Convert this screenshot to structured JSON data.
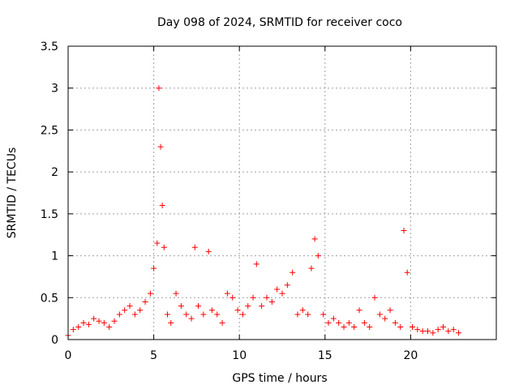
{
  "chart_data": {
    "type": "scatter",
    "title": "Day 098 of 2024, SRMTID for receiver coco",
    "xlabel": "GPS time / hours",
    "ylabel": "SRMTID / TECUs",
    "xlim": [
      0,
      25
    ],
    "ylim": [
      0,
      3.5
    ],
    "x_ticks": [
      0,
      5,
      10,
      15,
      20
    ],
    "y_ticks": [
      0,
      0.5,
      1,
      1.5,
      2,
      2.5,
      3,
      3.5
    ],
    "x_tick_labels": [
      "0",
      "5",
      "10",
      "15",
      "20"
    ],
    "y_tick_labels": [
      "0",
      "0.5",
      "1",
      "1.5",
      "2",
      "2.5",
      "3",
      "3.5"
    ],
    "grid": true,
    "marker": "+",
    "series": [
      {
        "name": "SRMTID",
        "color": "#ff0000",
        "x": [
          0.0,
          0.3,
          0.6,
          0.9,
          1.2,
          1.5,
          1.8,
          2.1,
          2.4,
          2.7,
          3.0,
          3.3,
          3.6,
          3.9,
          4.2,
          4.5,
          4.8,
          5.0,
          5.2,
          5.3,
          5.4,
          5.5,
          5.6,
          5.8,
          6.0,
          6.3,
          6.6,
          6.9,
          7.2,
          7.4,
          7.6,
          7.9,
          8.2,
          8.4,
          8.7,
          9.0,
          9.3,
          9.6,
          9.9,
          10.2,
          10.5,
          10.8,
          11.0,
          11.3,
          11.6,
          11.9,
          12.2,
          12.5,
          12.8,
          13.1,
          13.4,
          13.7,
          14.0,
          14.2,
          14.4,
          14.6,
          14.9,
          15.2,
          15.5,
          15.8,
          16.1,
          16.4,
          16.7,
          17.0,
          17.3,
          17.6,
          17.9,
          18.2,
          18.5,
          18.8,
          19.1,
          19.4,
          19.6,
          19.8,
          20.1,
          20.4,
          20.7,
          21.0,
          21.3,
          21.6,
          21.9,
          22.2,
          22.5,
          22.8
        ],
        "y": [
          0.05,
          0.12,
          0.15,
          0.2,
          0.18,
          0.25,
          0.22,
          0.2,
          0.15,
          0.22,
          0.3,
          0.35,
          0.4,
          0.3,
          0.35,
          0.45,
          0.55,
          0.85,
          1.15,
          3.0,
          2.3,
          1.6,
          1.1,
          0.3,
          0.2,
          0.55,
          0.4,
          0.3,
          0.25,
          1.1,
          0.4,
          0.3,
          1.05,
          0.35,
          0.3,
          0.2,
          0.55,
          0.5,
          0.35,
          0.3,
          0.4,
          0.5,
          0.9,
          0.4,
          0.5,
          0.45,
          0.6,
          0.55,
          0.65,
          0.8,
          0.3,
          0.35,
          0.3,
          0.85,
          1.2,
          1.0,
          0.3,
          0.2,
          0.25,
          0.2,
          0.15,
          0.2,
          0.15,
          0.35,
          0.2,
          0.15,
          0.5,
          0.3,
          0.25,
          0.35,
          0.2,
          0.15,
          1.3,
          0.8,
          0.15,
          0.12,
          0.1,
          0.1,
          0.08,
          0.12,
          0.15,
          0.1,
          0.12,
          0.08
        ]
      }
    ]
  }
}
